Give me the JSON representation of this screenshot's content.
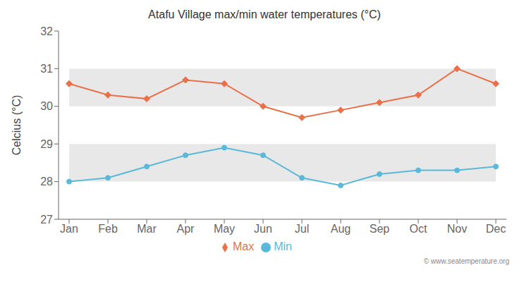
{
  "chart_data": {
    "type": "line",
    "title": "Atafu Village max/min water temperatures (°C)",
    "ylabel": "Celcius (°C)",
    "categories": [
      "Jan",
      "Feb",
      "Mar",
      "Apr",
      "May",
      "Jun",
      "Jul",
      "Aug",
      "Sep",
      "Oct",
      "Nov",
      "Dec"
    ],
    "series": [
      {
        "name": "Max",
        "color": "#e8714a",
        "marker": "diamond",
        "values": [
          30.6,
          30.3,
          30.2,
          30.7,
          30.6,
          30.0,
          29.7,
          29.9,
          30.1,
          30.3,
          31.0,
          30.6
        ]
      },
      {
        "name": "Min",
        "color": "#5ab9d8",
        "marker": "circle",
        "values": [
          28.0,
          28.1,
          28.4,
          28.7,
          28.9,
          28.7,
          28.1,
          27.9,
          28.2,
          28.3,
          28.3,
          28.4
        ]
      }
    ],
    "ylim": [
      27,
      32
    ],
    "yticks": [
      27,
      28,
      29,
      30,
      31,
      32
    ],
    "grid": true,
    "legend": "bottom",
    "annotations": [
      "© www.seatemperature.org"
    ]
  }
}
